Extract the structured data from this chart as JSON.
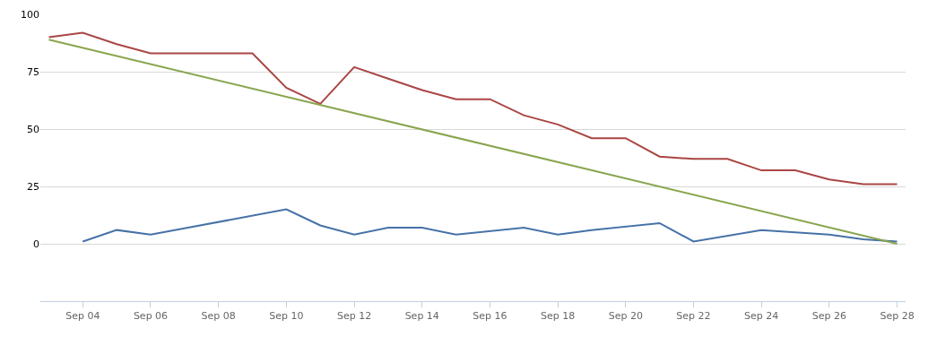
{
  "chart_data": {
    "type": "line",
    "ylim": [
      -25,
      100
    ],
    "yticks": [
      {
        "value": -25,
        "label": null
      },
      0,
      25,
      50,
      75,
      100
    ],
    "grid": "y",
    "marker": "none",
    "xlim": [
      "--09-02T18:00",
      "--09-28T06:00"
    ],
    "xticks": [
      {
        "value": "--09-04",
        "label": "Sep 04"
      },
      {
        "value": "--09-06",
        "label": "Sep 06"
      },
      {
        "value": "--09-08",
        "label": "Sep 08"
      },
      {
        "value": "--09-10",
        "label": "Sep 10"
      },
      {
        "value": "--09-12",
        "label": "Sep 12"
      },
      {
        "value": "--09-14",
        "label": "Sep 14"
      },
      {
        "value": "--09-16",
        "label": "Sep 16"
      },
      {
        "value": "--09-18",
        "label": "Sep 18"
      },
      {
        "value": "--09-20",
        "label": "Sep 20"
      },
      {
        "value": "--09-22",
        "label": "Sep 22"
      },
      {
        "value": "--09-24",
        "label": "Sep 24"
      },
      {
        "value": "--09-26",
        "label": "Sep 26"
      },
      {
        "value": "--09-28",
        "label": "Sep 28"
      }
    ],
    "series": [
      {
        "color": "#aa4643",
        "x": [
          "--09-03",
          "--09-04",
          "--09-05",
          "--09-06",
          "--09-07",
          "--09-08",
          "--09-09",
          "--09-10",
          "--09-11",
          "--09-12",
          "--09-13",
          "--09-14",
          "--09-15",
          "--09-16",
          "--09-17",
          "--09-18",
          "--09-19",
          "--09-20",
          "--09-21",
          "--09-22",
          "--09-23",
          "--09-24",
          "--09-25",
          "--09-26",
          "--09-27",
          "--09-28"
        ],
        "values": [
          90,
          92,
          87,
          83,
          83,
          83,
          83,
          68,
          61,
          77,
          72,
          67,
          63,
          63,
          56,
          52,
          46,
          46,
          38,
          37,
          37,
          32,
          32,
          28,
          26,
          26
        ]
      },
      {
        "color": "#4572a7",
        "x": [
          "--09-04",
          "--09-05",
          "--09-06",
          "--09-10",
          "--09-11",
          "--09-12",
          "--09-13",
          "--09-14",
          "--09-15",
          "--09-17",
          "--09-18",
          "--09-19",
          "--09-21",
          "--09-22",
          "--09-24",
          "--09-26",
          "--09-27",
          "--09-28"
        ],
        "values": [
          1,
          6,
          4,
          15,
          8,
          4,
          7,
          7,
          4,
          7,
          4,
          6,
          9,
          1,
          6,
          4,
          2,
          1
        ]
      },
      {
        "color": "#89a54e",
        "x": [
          "--09-03",
          "--09-28"
        ],
        "values": [
          89,
          0
        ]
      }
    ]
  }
}
